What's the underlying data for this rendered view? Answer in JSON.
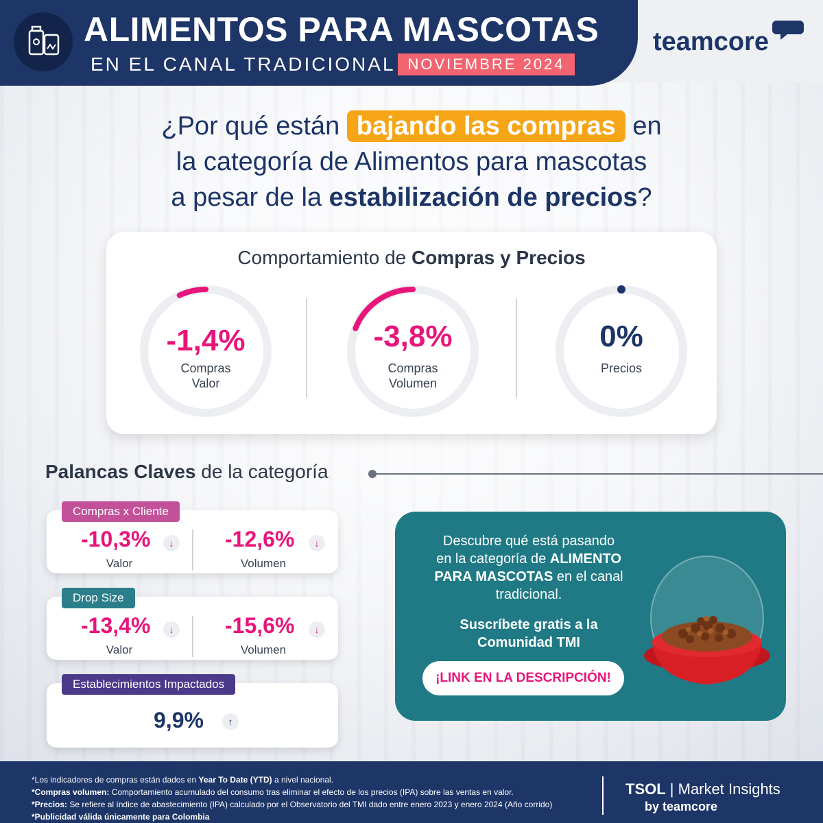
{
  "header": {
    "title": "ALIMENTOS PARA MASCOTAS",
    "subtitle": "EN EL CANAL TRADICIONAL",
    "date_badge": "NOVIEMBRE 2024",
    "brand": "teamcore",
    "colors": {
      "navy": "#1d3567",
      "coral": "#f26470"
    }
  },
  "question": {
    "part1": "¿Por qué están",
    "highlight": "bajando las compras",
    "part2": "en",
    "line2": "la categoría de Alimentos para mascotas",
    "line3_pre": "a pesar de la",
    "line3_bold": "estabilización de precios",
    "line3_post": "?",
    "highlight_color": "#f5a516"
  },
  "behavior": {
    "title_pre": "Comportamiento de",
    "title_bold": "Compras y Precios",
    "gauges": [
      {
        "value": "-1,4%",
        "label1": "Compras",
        "label2": "Valor",
        "level": -1.4,
        "color": "#e8157a"
      },
      {
        "value": "-3,8%",
        "label1": "Compras",
        "label2": "Volumen",
        "level": -3.8,
        "color": "#e8157a"
      },
      {
        "value": "0%",
        "label1": "Precios",
        "label2": "",
        "level": 0,
        "color": "#1d3567"
      }
    ]
  },
  "palancas": {
    "title_bold": "Palancas Claves",
    "title_rest": "de la categoría",
    "cards": [
      {
        "tag": "Compras x Cliente",
        "tag_color": "#c2519a",
        "v1": "-10,3%",
        "l1": "Valor",
        "v2": "-12,6%",
        "l2": "Volumen"
      },
      {
        "tag": "Drop Size",
        "tag_color": "#2a7f8a",
        "v1": "-13,4%",
        "l1": "Valor",
        "v2": "-15,6%",
        "l2": "Volumen"
      }
    ],
    "establecimientos": {
      "tag": "Establecimientos Impactados",
      "tag_color": "#4b3a8a",
      "value": "9,9%"
    },
    "arrow_down": "↓",
    "arrow_up": "↑"
  },
  "promo": {
    "line1": "Descubre qué está pasando",
    "line2_pre": "en la categoría de",
    "line2_bold": "ALIMENTO",
    "line3_bold": "PARA MASCOTAS",
    "line3_post": "en el canal",
    "line4": "tradicional.",
    "cta1": "Suscríbete gratis a la",
    "cta2": "Comunidad TMI",
    "button": "¡LINK EN LA DESCRIPCIÓN!",
    "color": "#1f7a85"
  },
  "footer": {
    "n1_pre": "*Los indicadores de compras están dados en",
    "n1_bold": "Year To Date (YTD)",
    "n1_post": "a nivel nacional.",
    "n2_bold": "*Compras volumen:",
    "n2_rest": "Comportamiento acumulado del consumo tras eliminar el efecto de los precios (IPA) sobre las ventas en valor.",
    "n3_bold": "*Precios:",
    "n3_rest": "Se refiere al índice de abastecimiento (IPA) calculado por el Observatorio del TMI dado entre enero 2023 y enero 2024 (Año corrido)",
    "n4_bold": "*Publicidad válida únicamente para Colombia",
    "tsol_bold": "TSOL",
    "tsol_rest": "| Market Insights",
    "by": "by teamcore"
  }
}
